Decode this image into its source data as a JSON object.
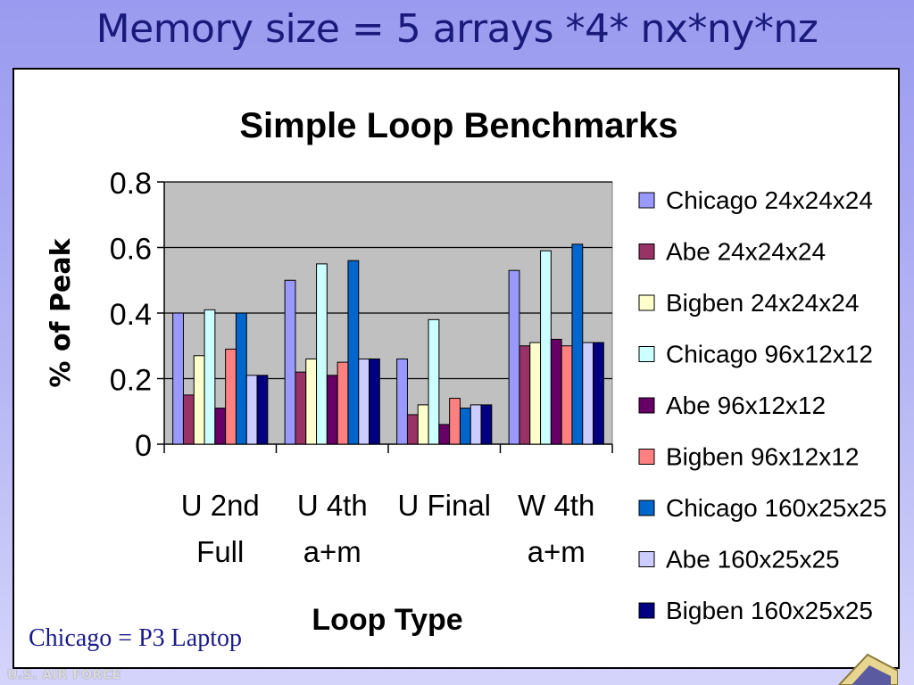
{
  "slide": {
    "title": "Memory size = 5 arrays *4* nx*ny*nz",
    "footnote": "Chicago = P3 Laptop",
    "logo_text": "U.S. AIR FORCE"
  },
  "chart_data": {
    "type": "bar",
    "title": "Simple Loop Benchmarks",
    "xlabel": "Loop Type",
    "ylabel": "% of Peak",
    "ylim": [
      0,
      0.8
    ],
    "yticks": [
      "0",
      "0.2",
      "0.4",
      "0.6",
      "0.8"
    ],
    "ytick_values": [
      0,
      0.2,
      0.4,
      0.6,
      0.8
    ],
    "grid": true,
    "legend_position": "right",
    "categories": [
      [
        "U 2nd",
        "Full"
      ],
      [
        "U 4th",
        "a+m"
      ],
      [
        "U Final"
      ],
      [
        "W 4th",
        "a+m"
      ]
    ],
    "series": [
      {
        "name": "Chicago 24x24x24",
        "color": "#9999ff",
        "values": [
          0.4,
          0.5,
          0.26,
          0.53
        ]
      },
      {
        "name": "Abe 24x24x24",
        "color": "#993366",
        "values": [
          0.15,
          0.22,
          0.09,
          0.3
        ]
      },
      {
        "name": "Bigben 24x24x24",
        "color": "#ffffcc",
        "values": [
          0.27,
          0.26,
          0.12,
          0.31
        ]
      },
      {
        "name": "Chicago 96x12x12",
        "color": "#ccffff",
        "values": [
          0.41,
          0.55,
          0.38,
          0.59
        ]
      },
      {
        "name": "Abe 96x12x12",
        "color": "#660066",
        "values": [
          0.11,
          0.21,
          0.06,
          0.32
        ]
      },
      {
        "name": "Bigben 96x12x12",
        "color": "#ff8080",
        "values": [
          0.29,
          0.25,
          0.14,
          0.3
        ]
      },
      {
        "name": "Chicago 160x25x25",
        "color": "#0066cc",
        "values": [
          0.4,
          0.56,
          0.11,
          0.61
        ]
      },
      {
        "name": "Abe 160x25x25",
        "color": "#ccccff",
        "values": [
          0.21,
          0.26,
          0.12,
          0.31
        ]
      },
      {
        "name": "Bigben 160x25x25",
        "color": "#000080",
        "values": [
          0.21,
          0.26,
          0.12,
          0.31
        ]
      }
    ]
  }
}
